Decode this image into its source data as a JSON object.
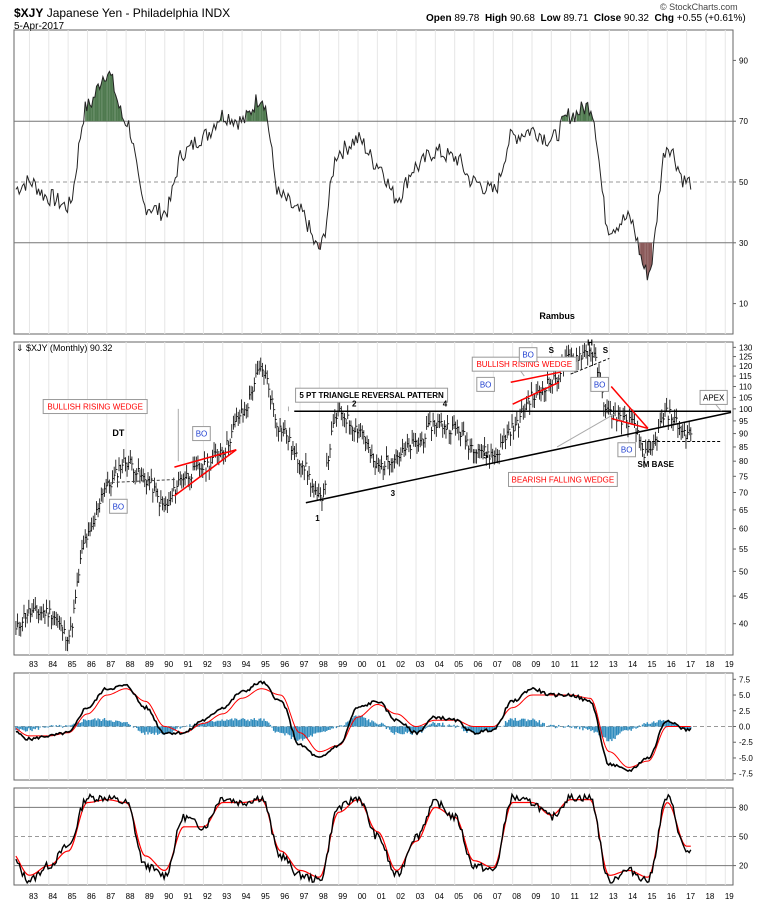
{
  "header": {
    "symbol": "$XJY",
    "name": "Japanese Yen - Philadelphia INDX",
    "date": "5-Apr-2017",
    "open_label": "Open",
    "open": "89.78",
    "high_label": "High",
    "high": "90.68",
    "low_label": "Low",
    "low": "89.71",
    "close_label": "Close",
    "close": "90.32",
    "chg_label": "Chg",
    "chg": "+0.55 (+0.61%)",
    "watermark": "© StockCharts.com"
  },
  "colors": {
    "price_bar": "#000000",
    "red_line": "#ff0000",
    "rsi_overbought_fill": "#4f7a4f",
    "rsi_oversold_fill": "#8b5a5a",
    "macd_histogram": "#2e8bbd",
    "bo_text": "#1f3fd0"
  },
  "chart_data": [
    {
      "type": "line",
      "panel": "RSI",
      "yticks": [
        10,
        30,
        50,
        70,
        90
      ],
      "ylim": [
        0,
        100
      ],
      "levels": [
        30,
        50,
        70
      ],
      "x": [
        "1982",
        "1983",
        "1984",
        "1985",
        "1986",
        "1987",
        "1988",
        "1989",
        "1990",
        "1991",
        "1992",
        "1993",
        "1994",
        "1995",
        "1996",
        "1997",
        "1998",
        "1999",
        "2000",
        "2001",
        "2002",
        "2003",
        "2004",
        "2005",
        "2006",
        "2007",
        "2008",
        "2009",
        "2010",
        "2011",
        "2012",
        "2013",
        "2014",
        "2015",
        "2016",
        "2017"
      ],
      "series": [
        {
          "values": [
            47,
            50,
            45,
            42,
            75,
            86,
            70,
            42,
            40,
            60,
            65,
            72,
            70,
            78,
            45,
            40,
            28,
            60,
            64,
            56,
            45,
            55,
            60,
            58,
            50,
            47,
            65,
            67,
            64,
            72,
            75,
            35,
            38,
            20,
            62,
            50
          ]
        }
      ],
      "annotations": [
        "Rambus"
      ]
    },
    {
      "type": "bar",
      "subtype": "ohlc",
      "panel": "price",
      "title": "$XJY (Monthly) 90.32",
      "scale": "log",
      "yticks": [
        40,
        45,
        50,
        55,
        60,
        65,
        70,
        75,
        80,
        85,
        90,
        95,
        100,
        105,
        110,
        115,
        120,
        125,
        130
      ],
      "ylim": [
        35,
        133
      ],
      "x": [
        "1982",
        "1983",
        "1984",
        "1985",
        "1986",
        "1987",
        "1988",
        "1989",
        "1990",
        "1991",
        "1992",
        "1993",
        "1994",
        "1995",
        "1996",
        "1997",
        "1998",
        "1999",
        "2000",
        "2001",
        "2002",
        "2003",
        "2004",
        "2005",
        "2006",
        "2007",
        "2008",
        "2009",
        "2010",
        "2011",
        "2012",
        "2013",
        "2014",
        "2015",
        "2016",
        "2017"
      ],
      "series": [
        {
          "values": [
            38,
            42,
            42,
            38,
            58,
            72,
            80,
            74,
            66,
            75,
            78,
            84,
            98,
            118,
            92,
            80,
            68,
            98,
            92,
            78,
            82,
            86,
            94,
            92,
            85,
            82,
            92,
            105,
            112,
            124,
            128,
            98,
            95,
            82,
            98,
            90
          ]
        }
      ],
      "annotations": [
        "BULLISH RISING WEDGE",
        "DT",
        "BO",
        "BO",
        "5 PT TRIANGLE REVERSAL PATTERN",
        "1",
        "2",
        "3",
        "4",
        "5",
        "BULLISH RISING WEDGE",
        "BO",
        "BO",
        "H",
        "S",
        "S",
        "BO",
        "BEARISH FALLING WEDGE",
        "BO",
        "SM BASE",
        "APEX"
      ]
    },
    {
      "type": "line",
      "panel": "MACD",
      "yticks": [
        "7.5",
        "5.0",
        "2.5",
        "0.0",
        "-2.5",
        "-5.0",
        "-7.5"
      ],
      "ylim": [
        -8.5,
        8.5
      ],
      "x": [
        "1982",
        "1983",
        "1984",
        "1985",
        "1986",
        "1987",
        "1988",
        "1989",
        "1990",
        "1991",
        "1992",
        "1993",
        "1994",
        "1995",
        "1996",
        "1997",
        "1998",
        "1999",
        "2000",
        "2001",
        "2002",
        "2003",
        "2004",
        "2005",
        "2006",
        "2007",
        "2008",
        "2009",
        "2010",
        "2011",
        "2012",
        "2013",
        "2014",
        "2015",
        "2016",
        "2017"
      ],
      "series": [
        {
          "values": [
            -0.5,
            -2,
            -1.5,
            -1,
            3,
            6,
            6.5,
            3,
            -1,
            -1,
            1,
            3,
            5.5,
            7,
            4,
            -3,
            -5,
            -3,
            3,
            4,
            1,
            -1,
            1.5,
            1,
            -1,
            -0.5,
            4,
            6,
            5,
            5,
            4,
            -6,
            -7,
            -5,
            1,
            -0.5
          ]
        },
        {
          "values": [
            0,
            -1.5,
            -1.5,
            -1,
            2,
            5,
            6,
            4,
            0,
            -1,
            0.5,
            2,
            4.5,
            6,
            5,
            -1,
            -4,
            -3,
            1.5,
            3.5,
            2,
            0,
            1,
            1,
            0,
            0,
            3,
            5,
            5,
            5,
            4.5,
            -4,
            -6.5,
            -5.5,
            0,
            0
          ]
        }
      ]
    },
    {
      "type": "line",
      "panel": "Stochastic",
      "yticks": [
        20,
        50,
        80
      ],
      "ylim": [
        0,
        100
      ],
      "levels": [
        20,
        50,
        80
      ],
      "x": [
        "1982",
        "1983",
        "1984",
        "1985",
        "1986",
        "1987",
        "1988",
        "1989",
        "1990",
        "1991",
        "1992",
        "1993",
        "1994",
        "1995",
        "1996",
        "1997",
        "1998",
        "1999",
        "2000",
        "2001",
        "2002",
        "2003",
        "2004",
        "2005",
        "2006",
        "2007",
        "2008",
        "2009",
        "2010",
        "2011",
        "2012",
        "2013",
        "2014",
        "2015",
        "2016",
        "2017"
      ],
      "series": [
        {
          "values": [
            30,
            5,
            20,
            40,
            90,
            90,
            85,
            20,
            10,
            70,
            60,
            90,
            85,
            90,
            30,
            10,
            5,
            80,
            90,
            50,
            10,
            50,
            85,
            70,
            20,
            15,
            90,
            85,
            70,
            90,
            90,
            5,
            15,
            5,
            90,
            35
          ]
        },
        {
          "values": [
            35,
            10,
            20,
            35,
            85,
            88,
            85,
            30,
            15,
            60,
            60,
            85,
            85,
            88,
            35,
            15,
            8,
            75,
            88,
            55,
            15,
            45,
            80,
            70,
            25,
            18,
            85,
            85,
            72,
            88,
            88,
            10,
            15,
            8,
            85,
            40
          ]
        }
      ]
    }
  ],
  "time_axis": [
    "83",
    "84",
    "85",
    "86",
    "87",
    "88",
    "89",
    "90",
    "91",
    "92",
    "93",
    "94",
    "95",
    "96",
    "97",
    "98",
    "99",
    "00",
    "01",
    "02",
    "03",
    "04",
    "05",
    "06",
    "07",
    "08",
    "09",
    "10",
    "11",
    "12",
    "13",
    "14",
    "15",
    "16",
    "17",
    "18",
    "19"
  ]
}
